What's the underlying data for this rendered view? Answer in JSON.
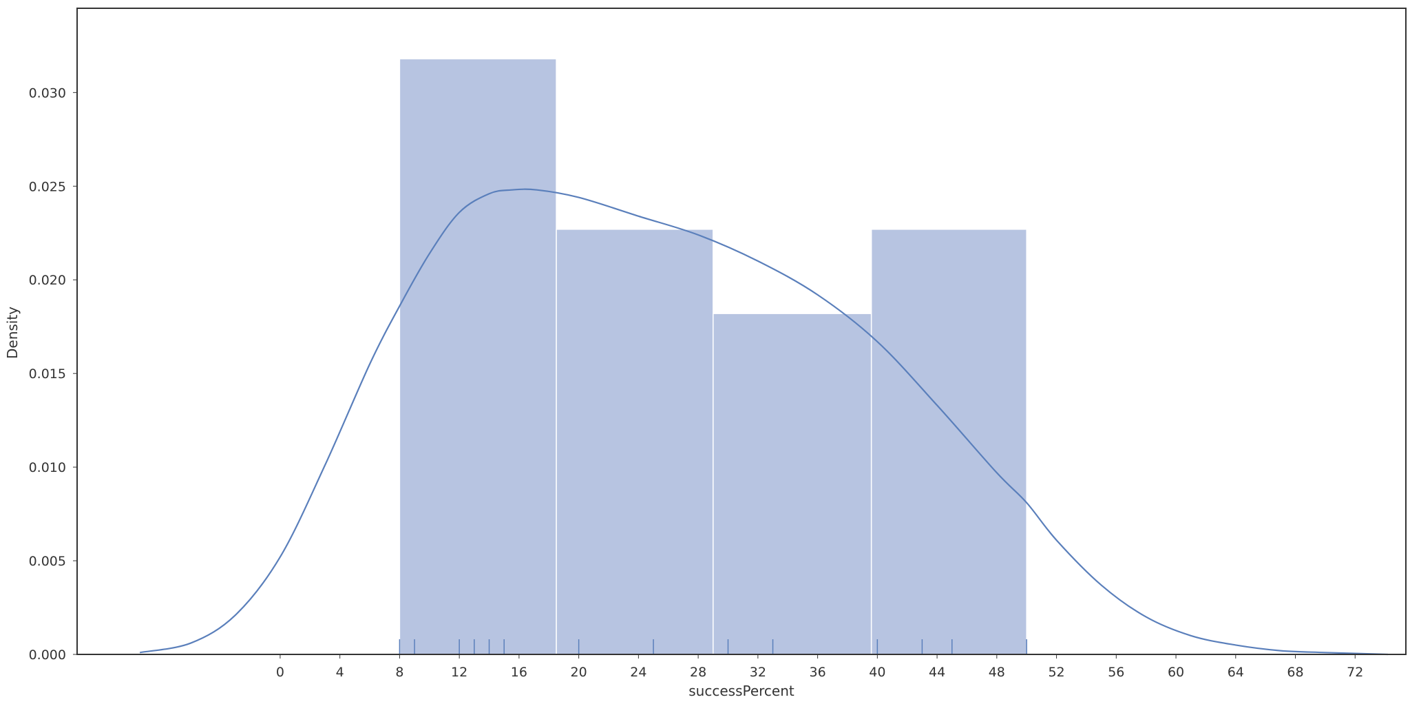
{
  "chart_data": {
    "type": "histogram",
    "title": "",
    "xlabel": "successPercent",
    "ylabel": "Density",
    "xlim": [
      -13.6,
      75.4
    ],
    "ylim": [
      0,
      0.0345
    ],
    "x_ticks": [
      0,
      4,
      8,
      12,
      16,
      20,
      24,
      28,
      32,
      36,
      40,
      44,
      48,
      52,
      56,
      60,
      64,
      68,
      72
    ],
    "y_ticks": [
      "0.000",
      "0.005",
      "0.010",
      "0.015",
      "0.020",
      "0.025",
      "0.030"
    ],
    "bins": [
      {
        "x0": 8.0,
        "x1": 18.5,
        "density": 0.0318
      },
      {
        "x0": 18.5,
        "x1": 29.0,
        "density": 0.0227
      },
      {
        "x0": 29.0,
        "x1": 39.6,
        "density": 0.0182
      },
      {
        "x0": 39.6,
        "x1": 50.0,
        "density": 0.0227
      }
    ],
    "kde": {
      "x": [
        -9.4,
        -6,
        -3,
        0,
        3,
        6,
        8,
        10,
        12,
        14,
        15.5,
        17.2,
        20,
        24,
        28,
        32,
        36,
        40,
        44,
        48,
        50,
        52,
        55,
        58,
        61,
        64,
        67,
        70,
        74.2
      ],
      "y": [
        0.0001,
        0.0006,
        0.0021,
        0.0052,
        0.0101,
        0.0155,
        0.0186,
        0.0214,
        0.0236,
        0.0246,
        0.0248,
        0.0248,
        0.0244,
        0.0234,
        0.0224,
        0.021,
        0.0192,
        0.0167,
        0.0133,
        0.0097,
        0.0081,
        0.0061,
        0.0037,
        0.002,
        0.001,
        0.0005,
        0.0002,
        0.0001,
        0.0
      ]
    },
    "rug": [
      8,
      9,
      12,
      13,
      14,
      15,
      20,
      25,
      30,
      33,
      40,
      43,
      45,
      50
    ],
    "colors": {
      "bar_fill": "#b7c4e1",
      "bar_edge": "#ffffff",
      "kde_line": "#5a7fbb",
      "rug": "#5a7fbb",
      "frame": "#333333",
      "text": "#333333"
    },
    "grid": false,
    "legend": "none"
  }
}
